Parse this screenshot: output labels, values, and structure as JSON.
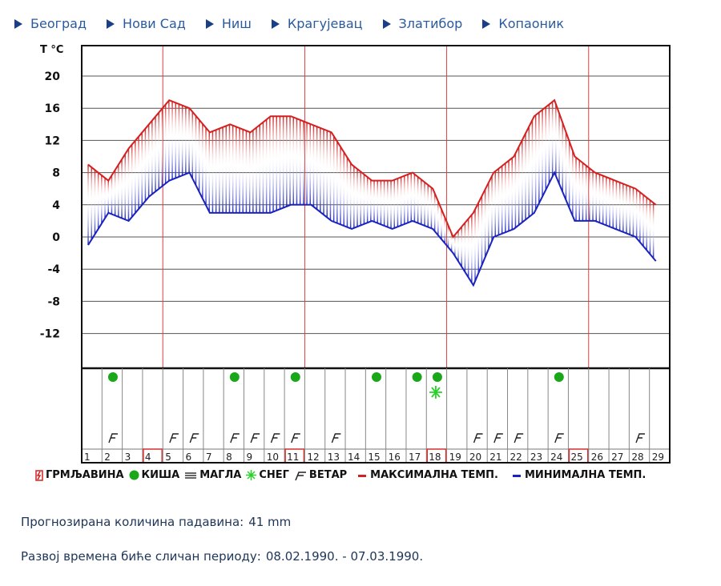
{
  "nav": {
    "links": [
      {
        "label": "Београд"
      },
      {
        "label": "Нови Сад"
      },
      {
        "label": "Ниш"
      },
      {
        "label": "Крагујевац"
      },
      {
        "label": "Златибор"
      },
      {
        "label": "Копаоник"
      }
    ]
  },
  "chart_data": {
    "type": "line",
    "title": "",
    "ylabel": "T °C",
    "xlabel": "",
    "ylim": [
      -16,
      24
    ],
    "yticks": [
      20,
      16,
      12,
      8,
      4,
      0,
      -4,
      -8,
      -12
    ],
    "grid": true,
    "x": [
      1,
      2,
      3,
      4,
      5,
      6,
      7,
      8,
      9,
      10,
      11,
      12,
      13,
      14,
      15,
      16,
      17,
      18,
      19,
      20,
      21,
      22,
      23,
      24,
      25,
      26,
      27,
      28,
      29
    ],
    "series": [
      {
        "name": "МАКСИМАЛНА ТЕМП.",
        "color": "#d42020",
        "values": [
          9,
          7,
          11,
          14,
          17,
          16,
          13,
          14,
          13,
          15,
          15,
          14,
          13,
          9,
          7,
          7,
          8,
          6,
          0,
          3,
          8,
          10,
          15,
          17,
          10,
          8,
          7,
          6,
          4
        ]
      },
      {
        "name": "МИНИМАЛНА ТЕМП.",
        "color": "#1a22c0",
        "values": [
          -1,
          3,
          2,
          5,
          7,
          8,
          3,
          3,
          3,
          3,
          4,
          4,
          2,
          1,
          2,
          1,
          2,
          1,
          -2,
          -6,
          0,
          1,
          3,
          8,
          2,
          2,
          1,
          0,
          -3
        ]
      }
    ],
    "week_separators_after_day": [
      4,
      11,
      18,
      25
    ],
    "highlighted_days": [
      4,
      11,
      18,
      25
    ],
    "weather_symbols": {
      "rain": [
        2,
        8,
        11,
        15,
        17,
        18,
        24
      ],
      "snow": [
        18
      ],
      "wind": [
        2,
        5,
        6,
        8,
        9,
        10,
        11,
        13,
        20,
        21,
        22,
        24,
        28
      ],
      "fog": [],
      "thunderstorm": []
    }
  },
  "legend": {
    "items": [
      {
        "key": "thunder",
        "label": "ГРМЉАВИНА",
        "color": "#d42020"
      },
      {
        "key": "rain",
        "label": "КИША",
        "color": "#1aa81a"
      },
      {
        "key": "fog",
        "label": "МАГЛА",
        "color": "#333333"
      },
      {
        "key": "snow",
        "label": "СНЕГ",
        "color": "#2bd12b"
      },
      {
        "key": "wind",
        "label": "ВЕТАР",
        "color": "#222222"
      },
      {
        "key": "max",
        "label": "МАКСИМАЛНА ТЕМП.",
        "color": "#d42020"
      },
      {
        "key": "min",
        "label": "МИНИМАЛНА ТЕМП.",
        "color": "#1a22c0"
      }
    ]
  },
  "info": {
    "precip_label": "Прогнозирана количина падавина:",
    "precip_value": "41  mm",
    "period_label": "Развој времена биће сличан периоду:",
    "period_value": "08.02.1990. - 07.03.1990."
  }
}
